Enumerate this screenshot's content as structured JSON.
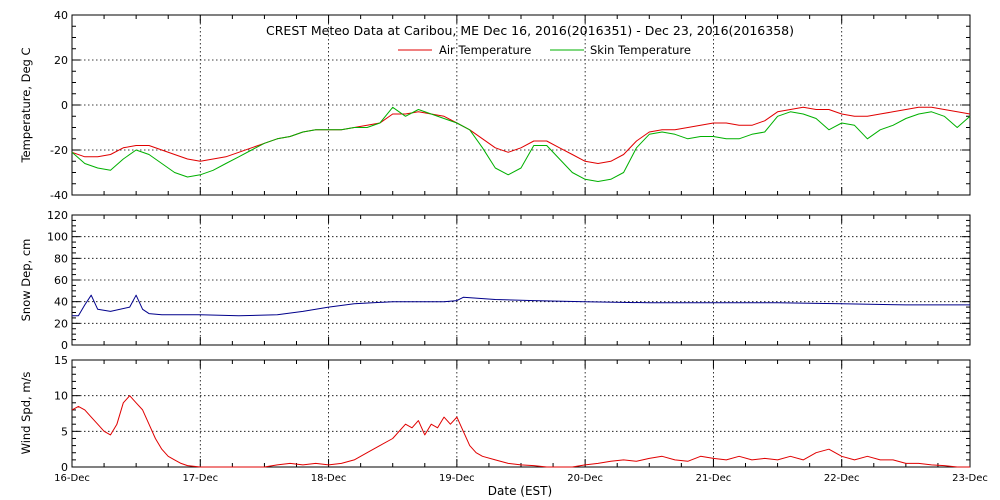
{
  "title": "CREST Meteo Data at Caribou, ME   Dec 16, 2016(2016351) - Dec 23, 2016(2016358)",
  "xlabel": "Date (EST)",
  "x_ticks": [
    "16-Dec",
    "17-Dec",
    "18-Dec",
    "19-Dec",
    "20-Dec",
    "21-Dec",
    "22-Dec",
    "23-Dec"
  ],
  "colors": {
    "air": "#e00000",
    "skin": "#00b000",
    "snow": "#00008b",
    "wind": "#e00000"
  },
  "chart_data": [
    {
      "type": "line",
      "ylabel": "Temperature, Deg C",
      "xlim": [
        0,
        7
      ],
      "ylim": [
        -40,
        40
      ],
      "y_ticks": [
        -40,
        -20,
        0,
        20,
        40
      ],
      "grid": true,
      "legend": "top-center",
      "series": [
        {
          "name": "Air Temperature",
          "color": "#e00000",
          "x": [
            0,
            0.1,
            0.2,
            0.3,
            0.4,
            0.5,
            0.6,
            0.7,
            0.8,
            0.9,
            1.0,
            1.1,
            1.2,
            1.3,
            1.4,
            1.5,
            1.6,
            1.7,
            1.8,
            1.9,
            2.0,
            2.1,
            2.2,
            2.3,
            2.4,
            2.5,
            2.6,
            2.7,
            2.8,
            2.9,
            3.0,
            3.1,
            3.2,
            3.3,
            3.4,
            3.5,
            3.6,
            3.7,
            3.8,
            3.9,
            4.0,
            4.1,
            4.2,
            4.3,
            4.4,
            4.5,
            4.6,
            4.7,
            4.8,
            4.9,
            5.0,
            5.1,
            5.2,
            5.3,
            5.4,
            5.5,
            5.6,
            5.7,
            5.8,
            5.9,
            6.0,
            6.1,
            6.2,
            6.3,
            6.4,
            6.5,
            6.6,
            6.7,
            6.8,
            6.9,
            7.0
          ],
          "y": [
            -21,
            -23,
            -23,
            -22,
            -19,
            -18,
            -18,
            -20,
            -22,
            -24,
            -25,
            -24,
            -23,
            -21,
            -19,
            -17,
            -15,
            -14,
            -12,
            -11,
            -11,
            -11,
            -10,
            -9,
            -8,
            -4,
            -4,
            -3,
            -4,
            -5,
            -8,
            -11,
            -15,
            -19,
            -21,
            -19,
            -16,
            -16,
            -19,
            -22,
            -25,
            -26,
            -25,
            -22,
            -16,
            -12,
            -11,
            -11,
            -10,
            -9,
            -8,
            -8,
            -9,
            -9,
            -7,
            -3,
            -2,
            -1,
            -2,
            -2,
            -4,
            -5,
            -5,
            -4,
            -3,
            -2,
            -1,
            -1,
            -2,
            -3,
            -4
          ]
        },
        {
          "name": "Skin Temperature",
          "color": "#00b000",
          "x": [
            0,
            0.1,
            0.2,
            0.3,
            0.4,
            0.5,
            0.6,
            0.7,
            0.8,
            0.9,
            1.0,
            1.1,
            1.2,
            1.3,
            1.4,
            1.5,
            1.6,
            1.7,
            1.8,
            1.9,
            2.0,
            2.1,
            2.2,
            2.3,
            2.4,
            2.5,
            2.6,
            2.7,
            2.8,
            2.9,
            3.0,
            3.1,
            3.2,
            3.3,
            3.4,
            3.5,
            3.6,
            3.7,
            3.8,
            3.9,
            4.0,
            4.1,
            4.2,
            4.3,
            4.4,
            4.5,
            4.6,
            4.7,
            4.8,
            4.9,
            5.0,
            5.1,
            5.2,
            5.3,
            5.4,
            5.5,
            5.6,
            5.7,
            5.8,
            5.9,
            6.0,
            6.1,
            6.2,
            6.3,
            6.4,
            6.5,
            6.6,
            6.7,
            6.8,
            6.9,
            7.0
          ],
          "y": [
            -21,
            -26,
            -28,
            -29,
            -24,
            -20,
            -22,
            -26,
            -30,
            -32,
            -31,
            -29,
            -26,
            -23,
            -20,
            -17,
            -15,
            -14,
            -12,
            -11,
            -11,
            -11,
            -10,
            -10,
            -8,
            -1,
            -5,
            -2,
            -4,
            -6,
            -8,
            -11,
            -19,
            -28,
            -31,
            -28,
            -18,
            -18,
            -24,
            -30,
            -33,
            -34,
            -33,
            -30,
            -19,
            -13,
            -12,
            -13,
            -15,
            -14,
            -14,
            -15,
            -15,
            -13,
            -12,
            -5,
            -3,
            -4,
            -6,
            -11,
            -8,
            -9,
            -15,
            -11,
            -9,
            -6,
            -4,
            -3,
            -5,
            -10,
            -5
          ]
        }
      ]
    },
    {
      "type": "line",
      "ylabel": "Snow Dep, cm",
      "xlim": [
        0,
        7
      ],
      "ylim": [
        0,
        120
      ],
      "y_ticks": [
        0,
        20,
        40,
        60,
        80,
        100,
        120
      ],
      "grid": true,
      "series": [
        {
          "name": "",
          "color": "#00008b",
          "x": [
            0,
            0.05,
            0.1,
            0.15,
            0.2,
            0.3,
            0.45,
            0.5,
            0.55,
            0.6,
            0.7,
            1.0,
            1.3,
            1.6,
            1.8,
            2.0,
            2.2,
            2.5,
            2.9,
            3.0,
            3.05,
            3.3,
            3.6,
            4.0,
            4.5,
            5.0,
            5.5,
            6.0,
            6.5,
            7.0
          ],
          "y": [
            27,
            27,
            37,
            46,
            33,
            31,
            35,
            46,
            33,
            29,
            28,
            28,
            27,
            28,
            31,
            35,
            38,
            40,
            40,
            41,
            44,
            42,
            41,
            40,
            39,
            39,
            39,
            38,
            37,
            37
          ]
        }
      ]
    },
    {
      "type": "line",
      "ylabel": "Wind Spd, m/s",
      "xlim": [
        0,
        7
      ],
      "ylim": [
        0,
        15
      ],
      "y_ticks": [
        0,
        5,
        10,
        15
      ],
      "grid": true,
      "series": [
        {
          "name": "",
          "color": "#e00000",
          "x": [
            0,
            0.05,
            0.1,
            0.15,
            0.2,
            0.25,
            0.3,
            0.35,
            0.4,
            0.45,
            0.5,
            0.55,
            0.6,
            0.65,
            0.7,
            0.75,
            0.8,
            0.85,
            0.9,
            1.0,
            1.1,
            1.2,
            1.3,
            1.4,
            1.5,
            1.6,
            1.7,
            1.8,
            1.9,
            2.0,
            2.1,
            2.2,
            2.3,
            2.4,
            2.5,
            2.6,
            2.65,
            2.7,
            2.75,
            2.8,
            2.85,
            2.9,
            2.95,
            3.0,
            3.05,
            3.1,
            3.15,
            3.2,
            3.3,
            3.4,
            3.5,
            3.6,
            3.7,
            3.8,
            3.9,
            4.0,
            4.1,
            4.2,
            4.3,
            4.4,
            4.5,
            4.6,
            4.7,
            4.8,
            4.9,
            5.0,
            5.1,
            5.2,
            5.3,
            5.4,
            5.5,
            5.6,
            5.7,
            5.8,
            5.9,
            6.0,
            6.1,
            6.2,
            6.3,
            6.4,
            6.5,
            6.6,
            6.7,
            6.8,
            6.9,
            7.0
          ],
          "y": [
            8,
            8.5,
            8,
            7,
            6,
            5,
            4.5,
            6,
            9,
            10,
            9,
            8,
            6,
            4,
            2.5,
            1.5,
            1,
            0.5,
            0.2,
            0,
            0,
            0,
            0,
            0,
            0,
            0.3,
            0.5,
            0.3,
            0.5,
            0.3,
            0.5,
            1,
            2,
            3,
            4,
            6,
            5.5,
            6.5,
            4.5,
            6,
            5.5,
            7,
            6,
            7,
            5,
            3,
            2,
            1.5,
            1,
            0.5,
            0.3,
            0.2,
            0,
            0,
            0,
            0.3,
            0.5,
            0.8,
            1,
            0.8,
            1.2,
            1.5,
            1,
            0.8,
            1.5,
            1.2,
            1,
            1.5,
            1,
            1.2,
            1,
            1.5,
            1,
            2,
            2.5,
            1.5,
            1,
            1.5,
            1,
            1,
            0.5,
            0.5,
            0.3,
            0.2,
            0,
            0
          ]
        }
      ]
    }
  ]
}
